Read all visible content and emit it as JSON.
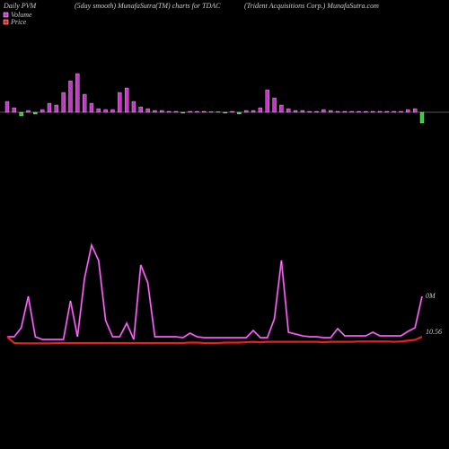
{
  "chart_data": {
    "type": "pvm",
    "title": "Daily PVM",
    "subtitle": "(5day smooth) MunafaSutra(TM) charts for TDAC",
    "company": "(Trident Acquisitions Corp.) MunafaSutra.com",
    "ylim": [
      0,
      50
    ],
    "smooth_ylim": [
      0,
      130
    ],
    "y2lim": [
      10.1,
      13.09
    ],
    "series": [
      {
        "name": "Volume",
        "color": "#cc33cc",
        "end_label": "0M",
        "values": [
          12,
          5,
          4,
          2,
          2,
          3,
          10,
          8,
          22,
          35,
          43,
          20,
          10,
          4,
          3,
          3,
          22,
          27,
          12,
          6,
          4,
          2,
          2,
          1,
          1,
          1,
          1,
          1,
          1,
          0.5,
          0.5,
          1,
          1,
          2,
          2,
          2,
          5,
          25,
          16,
          8,
          4,
          2,
          2,
          1,
          1,
          3,
          2,
          1,
          1,
          1,
          1,
          1,
          1,
          1,
          1,
          1,
          1,
          3,
          4,
          12
        ],
        "bar_colors": [
          "#cc33cc",
          "#cc33cc",
          "#33cc33",
          "#cc33cc",
          "#33cc33",
          "#cc33cc",
          "#cc33cc",
          "#cc33cc",
          "#cc33cc",
          "#cc33cc",
          "#cc33cc",
          "#cc33cc",
          "#cc33cc",
          "#cc33cc",
          "#cc33cc",
          "#cc33cc",
          "#cc33cc",
          "#cc33cc",
          "#cc33cc",
          "#cc33cc",
          "#cc33cc",
          "#cc33cc",
          "#cc33cc",
          "#cc33cc",
          "#cc33cc",
          "#33cc33",
          "#cc33cc",
          "#cc33cc",
          "#cc33cc",
          "#cc33cc",
          "#cc33cc",
          "#33cc33",
          "#cc33cc",
          "#33cc33",
          "#cc33cc",
          "#cc33cc",
          "#cc33cc",
          "#cc33cc",
          "#cc33cc",
          "#cc33cc",
          "#cc33cc",
          "#cc33cc",
          "#cc33cc",
          "#cc33cc",
          "#cc33cc",
          "#cc33cc",
          "#cc33cc",
          "#cc33cc",
          "#cc33cc",
          "#cc33cc",
          "#cc33cc",
          "#cc33cc",
          "#cc33cc",
          "#cc33cc",
          "#cc33cc",
          "#cc33cc",
          "#cc33cc",
          "#cc33cc",
          "#cc33cc",
          "#33cc33"
        ],
        "smooth": [
          20,
          20,
          30,
          65,
          20,
          17,
          17,
          17,
          17,
          60,
          20,
          85,
          122,
          105,
          38,
          20,
          20,
          35,
          17,
          100,
          80,
          20,
          20,
          20,
          20,
          19,
          24,
          20,
          19,
          19,
          19,
          19,
          19,
          19,
          19,
          27,
          19,
          19,
          40,
          105,
          25,
          23,
          21,
          20,
          20,
          19,
          19,
          29,
          21,
          21,
          21,
          21,
          25,
          21,
          21,
          21,
          21,
          26,
          30,
          65
        ]
      },
      {
        "name": "Price",
        "color": "#e8201c",
        "axis": "y2",
        "end_label": "10.56",
        "values": [
          10.56,
          10.4,
          10.39,
          10.39,
          10.39,
          10.39,
          10.39,
          10.4,
          10.4,
          10.4,
          10.4,
          10.4,
          10.4,
          10.4,
          10.4,
          10.4,
          10.4,
          10.4,
          10.4,
          10.4,
          10.4,
          10.4,
          10.4,
          10.4,
          10.4,
          10.4,
          10.41,
          10.41,
          10.4,
          10.4,
          10.4,
          10.41,
          10.41,
          10.41,
          10.42,
          10.43,
          10.42,
          10.43,
          10.43,
          10.43,
          10.43,
          10.43,
          10.43,
          10.43,
          10.43,
          10.42,
          10.43,
          10.43,
          10.43,
          10.43,
          10.44,
          10.44,
          10.44,
          10.44,
          10.44,
          10.43,
          10.44,
          10.46,
          10.48,
          10.56
        ]
      }
    ]
  }
}
